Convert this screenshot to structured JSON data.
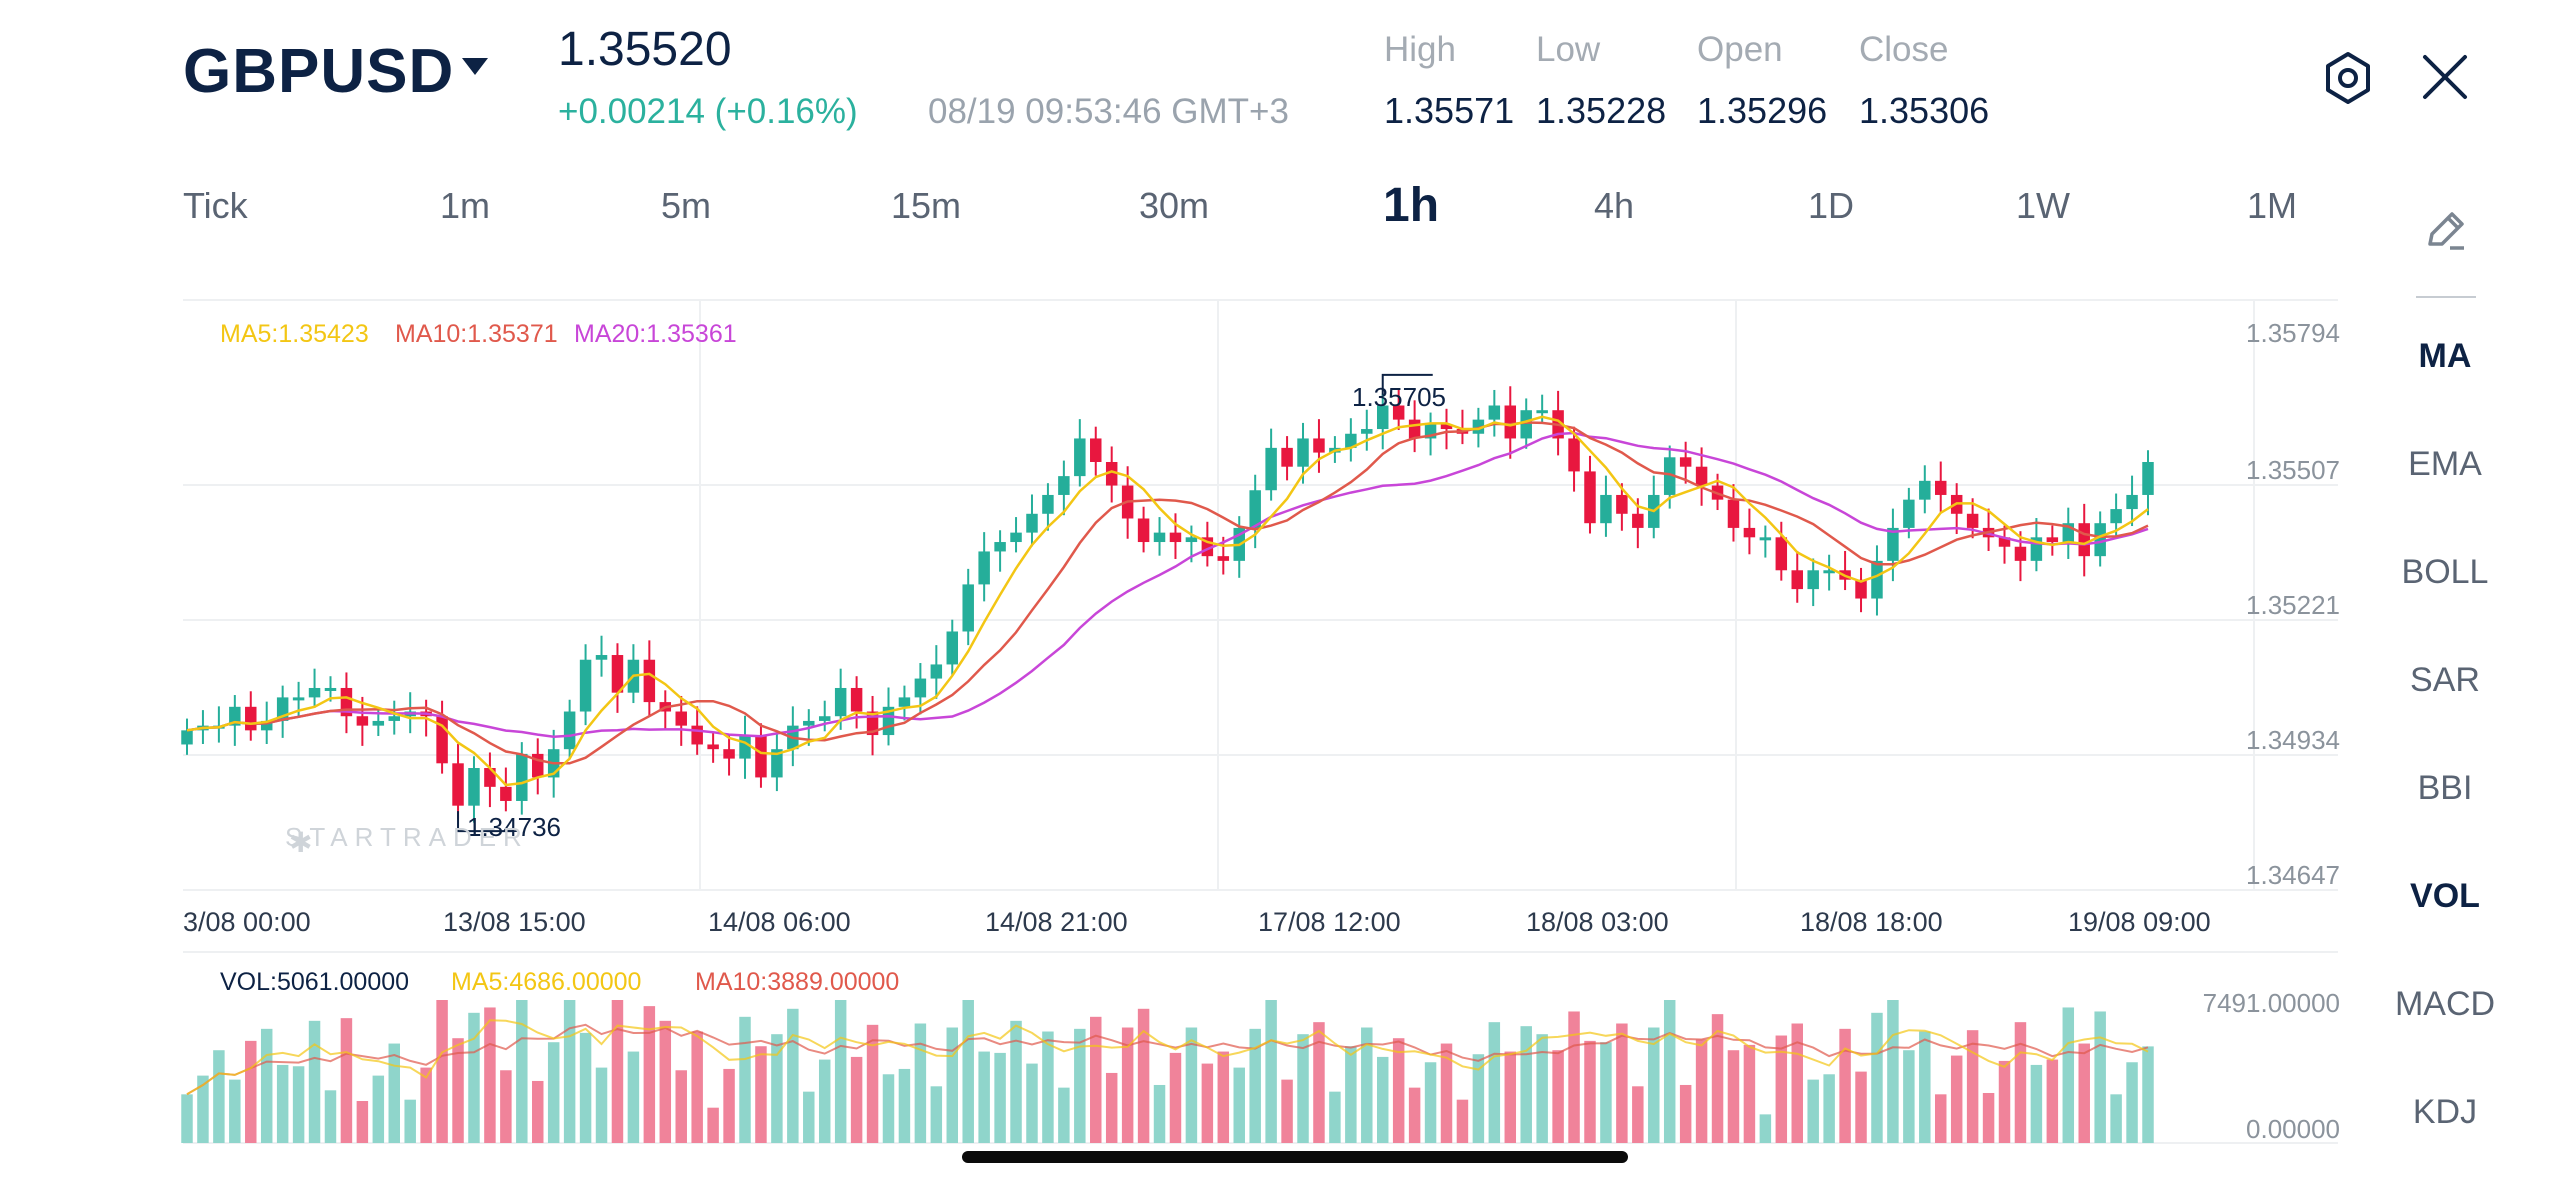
{
  "header": {
    "symbol": "GBPUSD",
    "price": "1.35520",
    "change": "+0.00214 (+0.16%)",
    "timestamp": "08/19 09:53:46 GMT+3",
    "stats": [
      {
        "label": "High",
        "value": "1.35571"
      },
      {
        "label": "Low",
        "value": "1.35228"
      },
      {
        "label": "Open",
        "value": "1.35296"
      },
      {
        "label": "Close",
        "value": "1.35306"
      }
    ],
    "settings_icon": "hexagon-gear-icon",
    "close_icon": "close-icon"
  },
  "timeframes": [
    "Tick",
    "1m",
    "5m",
    "15m",
    "30m",
    "1h",
    "4h",
    "1D",
    "1W",
    "1M"
  ],
  "active_timeframe": "1h",
  "indicators": {
    "draw_icon": "pencil-icon",
    "items": [
      "MA",
      "EMA",
      "BOLL",
      "SAR",
      "BBI",
      "VOL",
      "MACD",
      "KDJ"
    ],
    "bold": [
      "MA",
      "VOL"
    ]
  },
  "chart_legend": {
    "ma5": "MA5:1.35423",
    "ma10": "MA10:1.35371",
    "ma20": "MA20:1.35361"
  },
  "volume_legend": {
    "vol": "VOL:5061.00000",
    "ma5": "MA5:4686.00000",
    "ma10": "MA10:3889.00000"
  },
  "watermark": "STARTRADER",
  "colors": {
    "up": "#25ae9a",
    "down": "#e8173f",
    "ma5": "#f3c614",
    "ma10": "#e0594c",
    "ma20": "#c846d8",
    "vol_up": "#8fd5cb",
    "vol_down": "#f0839a"
  },
  "chart_data": {
    "type": "candlestick",
    "y_ticks": [
      "1.35794",
      "1.35507",
      "1.35221",
      "1.34934",
      "1.34647"
    ],
    "ylim": [
      1.34647,
      1.35794
    ],
    "x_ticks": [
      "3/08 00:00",
      "13/08 15:00",
      "14/08 06:00",
      "14/08 21:00",
      "17/08 12:00",
      "18/08 03:00",
      "18/08 18:00",
      "19/08 09:00"
    ],
    "annotations": {
      "high": "1.35705",
      "low": "1.34736"
    },
    "volume_ticks": [
      "7491.00000",
      "0.00000"
    ],
    "volume_ylim": [
      0,
      7491
    ],
    "closes": [
      1.3495,
      1.3496,
      1.3496,
      1.35,
      1.3495,
      1.3497,
      1.3502,
      1.3502,
      1.3504,
      1.3504,
      1.3498,
      1.3496,
      1.3497,
      1.3498,
      1.3499,
      1.3498,
      1.3488,
      1.3479,
      1.3487,
      1.3483,
      1.348,
      1.349,
      1.3485,
      1.3491,
      1.3499,
      1.351,
      1.3511,
      1.3503,
      1.351,
      1.3501,
      1.3499,
      1.3496,
      1.3492,
      1.3491,
      1.3489,
      1.3494,
      1.3485,
      1.3491,
      1.3496,
      1.3497,
      1.3498,
      1.3504,
      1.3499,
      1.3494,
      1.35,
      1.3502,
      1.3506,
      1.3509,
      1.3516,
      1.3526,
      1.3533,
      1.3535,
      1.3537,
      1.3541,
      1.3545,
      1.3549,
      1.3557,
      1.3552,
      1.3547,
      1.354,
      1.3535,
      1.3537,
      1.3535,
      1.3536,
      1.3532,
      1.3531,
      1.3538,
      1.3546,
      1.3555,
      1.3551,
      1.3557,
      1.3554,
      1.3555,
      1.3558,
      1.3559,
      1.3564,
      1.3561,
      1.3557,
      1.356,
      1.3559,
      1.3558,
      1.3561,
      1.3564,
      1.3557,
      1.3563,
      1.3563,
      1.3557,
      1.355,
      1.3539,
      1.3545,
      1.3541,
      1.3538,
      1.3545,
      1.3553,
      1.3551,
      1.3547,
      1.3544,
      1.3538,
      1.3536,
      1.3536,
      1.3529,
      1.3525,
      1.3529,
      1.3529,
      1.3527,
      1.3523,
      1.3531,
      1.3538,
      1.3544,
      1.3548,
      1.3545,
      1.3541,
      1.3538,
      1.3536,
      1.3534,
      1.3531,
      1.3536,
      1.3535,
      1.3539,
      1.3532,
      1.3539,
      1.3542,
      1.3545,
      1.3552
    ]
  }
}
